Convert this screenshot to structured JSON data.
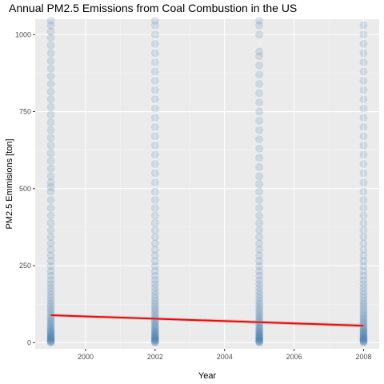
{
  "chart_data": {
    "type": "scatter",
    "title": "Annual PM2.5 Emissions from Coal Combustion in the US",
    "xlabel": "Year",
    "ylabel": "PM2.5 Emmisions [ton]",
    "xlim": [
      1998.55,
      2008.45
    ],
    "ylim": [
      -20,
      1050
    ],
    "x_ticks": [
      2000,
      2002,
      2004,
      2006,
      2008
    ],
    "x_tick_labels": [
      "2000",
      "2002",
      "2004",
      "2006",
      "2008"
    ],
    "y_ticks": [
      0,
      250,
      500,
      750,
      1000
    ],
    "y_tick_labels": [
      "0",
      "250",
      "500",
      "750",
      "1000"
    ],
    "grid": true,
    "legend": "none",
    "point_color": "#4682b4",
    "point_alpha": 0.18,
    "series": [
      {
        "x_years": [
          1999,
          2002,
          2005,
          2008
        ],
        "points": {
          "1999": [
            0,
            2,
            4,
            6,
            8,
            10,
            12,
            14,
            16,
            18,
            20,
            23,
            26,
            29,
            32,
            35,
            38,
            42,
            46,
            50,
            55,
            60,
            65,
            70,
            76,
            82,
            88,
            95,
            102,
            110,
            118,
            126,
            135,
            145,
            155,
            166,
            178,
            190,
            203,
            217,
            232,
            248,
            265,
            283,
            302,
            322,
            343,
            365,
            388,
            412,
            437,
            463,
            490,
            505,
            520,
            540,
            565,
            590,
            615,
            640,
            665,
            690,
            715,
            740,
            765,
            790,
            815,
            840,
            865,
            890,
            915,
            940,
            965,
            990,
            1010,
            1030,
            1045
          ],
          "2002": [
            0,
            2,
            4,
            6,
            8,
            10,
            12,
            14,
            16,
            18,
            20,
            23,
            26,
            29,
            32,
            35,
            38,
            42,
            46,
            50,
            55,
            60,
            65,
            70,
            76,
            82,
            88,
            95,
            102,
            110,
            118,
            126,
            135,
            145,
            155,
            166,
            178,
            190,
            203,
            217,
            232,
            248,
            265,
            283,
            302,
            322,
            343,
            365,
            388,
            412,
            437,
            463,
            490,
            520,
            550,
            580,
            610,
            640,
            670,
            700,
            730,
            760,
            790,
            820,
            850,
            880,
            910,
            940,
            970,
            1000,
            1030,
            1045
          ],
          "2005": [
            0,
            2,
            4,
            6,
            8,
            10,
            12,
            14,
            16,
            18,
            20,
            23,
            26,
            29,
            32,
            35,
            38,
            42,
            46,
            50,
            55,
            60,
            65,
            70,
            76,
            82,
            88,
            95,
            102,
            110,
            118,
            126,
            135,
            145,
            155,
            166,
            178,
            190,
            203,
            217,
            232,
            248,
            265,
            283,
            302,
            322,
            343,
            365,
            388,
            412,
            437,
            463,
            490,
            515,
            540,
            570,
            600,
            630,
            660,
            690,
            720,
            750,
            780,
            810,
            840,
            870,
            900,
            930,
            945,
            1000,
            1030,
            1045
          ],
          "2008": [
            0,
            2,
            4,
            6,
            8,
            10,
            12,
            14,
            16,
            18,
            20,
            23,
            26,
            29,
            32,
            35,
            38,
            42,
            46,
            50,
            55,
            60,
            65,
            70,
            76,
            82,
            88,
            95,
            102,
            110,
            118,
            126,
            135,
            145,
            155,
            166,
            178,
            190,
            203,
            217,
            232,
            248,
            265,
            283,
            302,
            322,
            343,
            365,
            388,
            412,
            437,
            463,
            490,
            520,
            550,
            580,
            610,
            640,
            670,
            700,
            730,
            760,
            790,
            820,
            850,
            880,
            910,
            940,
            970,
            1000,
            1030
          ]
        }
      }
    ],
    "trend_line": {
      "color": "#ff0000",
      "band_color": "#b3b3b3",
      "points": [
        {
          "x": 1999,
          "y": 89,
          "lower": 84,
          "upper": 94
        },
        {
          "x": 2008,
          "y": 55,
          "lower": 49,
          "upper": 61
        }
      ]
    }
  }
}
